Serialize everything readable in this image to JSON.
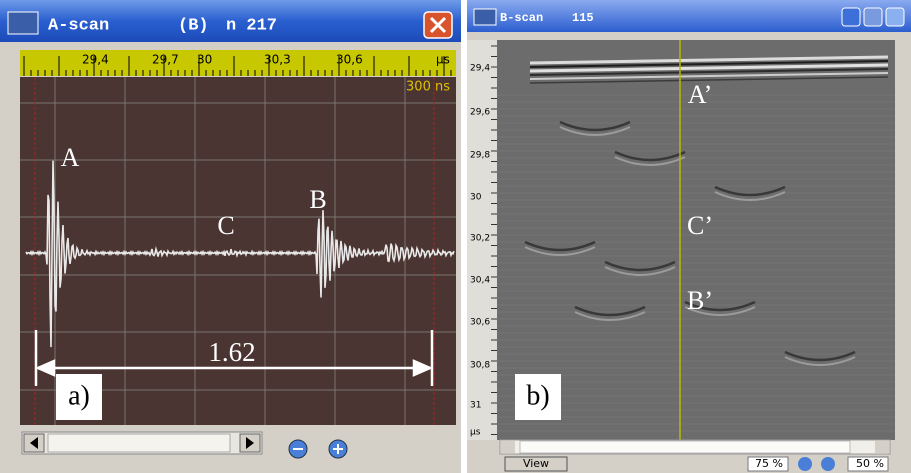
{
  "a_scan": {
    "title": "A-scan",
    "mode": "(B)",
    "n_label": "n 217",
    "ruler": [
      "29,4",
      "29,7",
      "30",
      "30,3",
      "30,6",
      "µs"
    ],
    "time_window": "300 ns",
    "peaks": {
      "a": "A",
      "b": "B",
      "c": "C"
    },
    "distance": "1.62",
    "panel": "a)"
  },
  "b_scan": {
    "title": "B-scan",
    "number": "115",
    "y_axis": [
      "29,4",
      "29,6",
      "29,8",
      "30",
      "30,2",
      "30,4",
      "30,6",
      "30,8",
      "31",
      "µs"
    ],
    "labels": {
      "a": "A’",
      "c": "C’",
      "b": "B’"
    },
    "panel": "b)",
    "view_button": "View",
    "zoom_1": "75 %",
    "zoom_2": "50 %"
  }
}
